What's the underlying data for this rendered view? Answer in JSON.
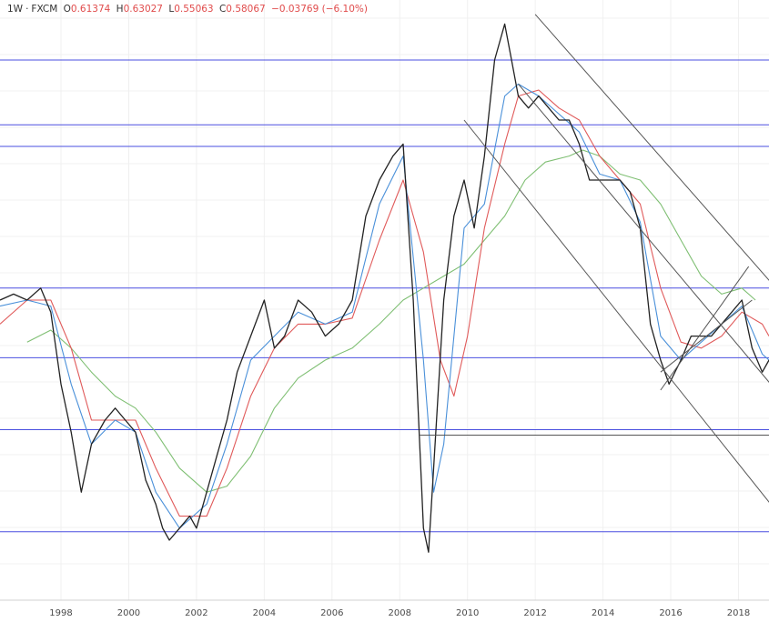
{
  "header": {
    "interval": "1W",
    "separator": "·",
    "source": "FXCM",
    "open_label": "O",
    "open": "0.61374",
    "high_label": "H",
    "high": "0.63027",
    "low_label": "L",
    "low": "0.55063",
    "close_label": "C",
    "close": "0.58067",
    "change": "−0.03769 (−6.10%)"
  },
  "chart_data": {
    "type": "line",
    "title": "",
    "xlabel": "",
    "ylabel": "",
    "x_tick_labels": [
      "1998",
      "2000",
      "2002",
      "2004",
      "2006",
      "2008",
      "2010",
      "2012",
      "2014",
      "2016",
      "2018"
    ],
    "x_ticks": [
      1998,
      2000,
      2002,
      2004,
      2006,
      2008,
      2010,
      2012,
      2014,
      2016,
      2018
    ],
    "xlim": [
      1996.2,
      2018.9
    ],
    "ylim": [
      0.35,
      0.85
    ],
    "grid": true,
    "series": [
      {
        "role": "price",
        "color": "#222222",
        "x": [
          1996.2,
          1996.6,
          1997.0,
          1997.4,
          1997.7,
          1998.0,
          1998.3,
          1998.6,
          1998.9,
          1999.3,
          1999.6,
          1999.9,
          2000.2,
          2000.5,
          2000.8,
          2001.0,
          2001.2,
          2001.5,
          2001.8,
          2002.0,
          2002.3,
          2002.6,
          2002.9,
          2003.2,
          2003.6,
          2004.0,
          2004.3,
          2004.6,
          2005.0,
          2005.4,
          2005.8,
          2006.2,
          2006.6,
          2007.0,
          2007.4,
          2007.8,
          2008.1,
          2008.4,
          2008.7,
          2008.85,
          2009.0,
          2009.3,
          2009.6,
          2009.9,
          2010.2,
          2010.5,
          2010.8,
          2011.1,
          2011.3,
          2011.5,
          2011.8,
          2012.1,
          2012.4,
          2012.7,
          2013.0,
          2013.3,
          2013.6,
          2013.9,
          2014.2,
          2014.5,
          2014.8,
          2015.1,
          2015.4,
          2015.7,
          2015.95,
          2016.3,
          2016.6,
          2016.9,
          2017.2,
          2017.5,
          2017.8,
          2018.1,
          2018.4,
          2018.7,
          2018.9
        ],
        "y": [
          0.6,
          0.605,
          0.6,
          0.61,
          0.59,
          0.53,
          0.49,
          0.44,
          0.48,
          0.5,
          0.51,
          0.5,
          0.49,
          0.45,
          0.43,
          0.41,
          0.4,
          0.41,
          0.42,
          0.41,
          0.44,
          0.47,
          0.5,
          0.54,
          0.57,
          0.6,
          0.56,
          0.57,
          0.6,
          0.59,
          0.57,
          0.58,
          0.6,
          0.67,
          0.7,
          0.72,
          0.73,
          0.6,
          0.41,
          0.39,
          0.46,
          0.6,
          0.67,
          0.7,
          0.66,
          0.72,
          0.8,
          0.83,
          0.8,
          0.77,
          0.76,
          0.77,
          0.76,
          0.75,
          0.75,
          0.73,
          0.7,
          0.7,
          0.7,
          0.7,
          0.69,
          0.66,
          0.58,
          0.55,
          0.53,
          0.55,
          0.57,
          0.57,
          0.57,
          0.58,
          0.59,
          0.6,
          0.56,
          0.54,
          0.55
        ]
      },
      {
        "role": "moving-average-fast",
        "color": "#4a90d9",
        "x": [
          1996.2,
          1997.0,
          1997.7,
          1998.3,
          1998.9,
          1999.6,
          2000.2,
          2000.8,
          2001.5,
          2002.3,
          2002.9,
          2003.6,
          2004.3,
          2005.0,
          2005.8,
          2006.6,
          2007.4,
          2008.1,
          2008.7,
          2009.0,
          2009.3,
          2009.9,
          2010.5,
          2011.1,
          2011.5,
          2012.1,
          2012.7,
          2013.3,
          2013.9,
          2014.5,
          2015.1,
          2015.7,
          2016.3,
          2016.9,
          2017.5,
          2018.1,
          2018.7,
          2018.9
        ],
        "y": [
          0.595,
          0.6,
          0.595,
          0.53,
          0.48,
          0.5,
          0.49,
          0.44,
          0.41,
          0.43,
          0.48,
          0.55,
          0.57,
          0.59,
          0.58,
          0.59,
          0.68,
          0.72,
          0.55,
          0.44,
          0.48,
          0.66,
          0.68,
          0.77,
          0.78,
          0.77,
          0.755,
          0.74,
          0.705,
          0.7,
          0.665,
          0.57,
          0.55,
          0.565,
          0.58,
          0.595,
          0.555,
          0.55
        ]
      },
      {
        "role": "moving-average-mid",
        "color": "#e05a5a",
        "x": [
          1996.2,
          1997.0,
          1997.7,
          1998.3,
          1998.9,
          1999.6,
          2000.2,
          2000.8,
          2001.5,
          2002.3,
          2002.9,
          2003.6,
          2004.3,
          2005.0,
          2005.8,
          2006.6,
          2007.4,
          2008.1,
          2008.7,
          2009.2,
          2009.6,
          2010.0,
          2010.5,
          2011.1,
          2011.5,
          2012.1,
          2012.7,
          2013.3,
          2013.9,
          2014.5,
          2015.1,
          2015.7,
          2016.3,
          2016.9,
          2017.5,
          2018.1,
          2018.7,
          2018.9
        ],
        "y": [
          0.58,
          0.6,
          0.6,
          0.56,
          0.5,
          0.5,
          0.5,
          0.46,
          0.42,
          0.42,
          0.46,
          0.52,
          0.56,
          0.58,
          0.58,
          0.585,
          0.65,
          0.7,
          0.64,
          0.55,
          0.52,
          0.57,
          0.66,
          0.73,
          0.77,
          0.775,
          0.76,
          0.75,
          0.72,
          0.7,
          0.68,
          0.61,
          0.565,
          0.56,
          0.57,
          0.59,
          0.58,
          0.57
        ]
      },
      {
        "role": "moving-average-slow",
        "color": "#7fbf73",
        "x": [
          1997.0,
          1997.7,
          1998.3,
          1998.9,
          1999.6,
          2000.2,
          2000.8,
          2001.5,
          2002.3,
          2002.9,
          2003.6,
          2004.3,
          2005.0,
          2005.8,
          2006.6,
          2007.4,
          2008.1,
          2008.7,
          2009.3,
          2009.9,
          2010.5,
          2011.1,
          2011.7,
          2012.3,
          2013.0,
          2013.4,
          2013.9,
          2014.5,
          2015.1,
          2015.7,
          2016.3,
          2016.9,
          2017.5,
          2018.1,
          2018.5
        ],
        "y": [
          0.565,
          0.575,
          0.56,
          0.54,
          0.52,
          0.51,
          0.49,
          0.46,
          0.44,
          0.445,
          0.47,
          0.51,
          0.535,
          0.55,
          0.56,
          0.58,
          0.6,
          0.61,
          0.62,
          0.63,
          0.65,
          0.67,
          0.7,
          0.715,
          0.72,
          0.725,
          0.72,
          0.705,
          0.7,
          0.68,
          0.65,
          0.62,
          0.605,
          0.61,
          0.6
        ]
      }
    ],
    "horizontal_levels": [
      0.8,
      0.746,
      0.728,
      0.61,
      0.552,
      0.492,
      0.407
    ],
    "horizontal_level_color": "#4a4fe0",
    "trend_lines": [
      {
        "x": [
          2008.6,
          2018.95
        ],
        "y": [
          0.4875,
          0.4875
        ]
      },
      {
        "x": [
          2012.0,
          2018.95
        ],
        "y": [
          0.838,
          0.615
        ]
      },
      {
        "x": [
          2011.5,
          2018.95
        ],
        "y": [
          0.78,
          0.53
        ]
      },
      {
        "x": [
          2009.9,
          2018.95
        ],
        "y": [
          0.75,
          0.43
        ]
      },
      {
        "x": [
          2015.7,
          2018.3
        ],
        "y": [
          0.525,
          0.628
        ]
      },
      {
        "x": [
          2015.7,
          2018.4
        ],
        "y": [
          0.54,
          0.6
        ]
      }
    ],
    "trend_line_color": "#555555"
  }
}
